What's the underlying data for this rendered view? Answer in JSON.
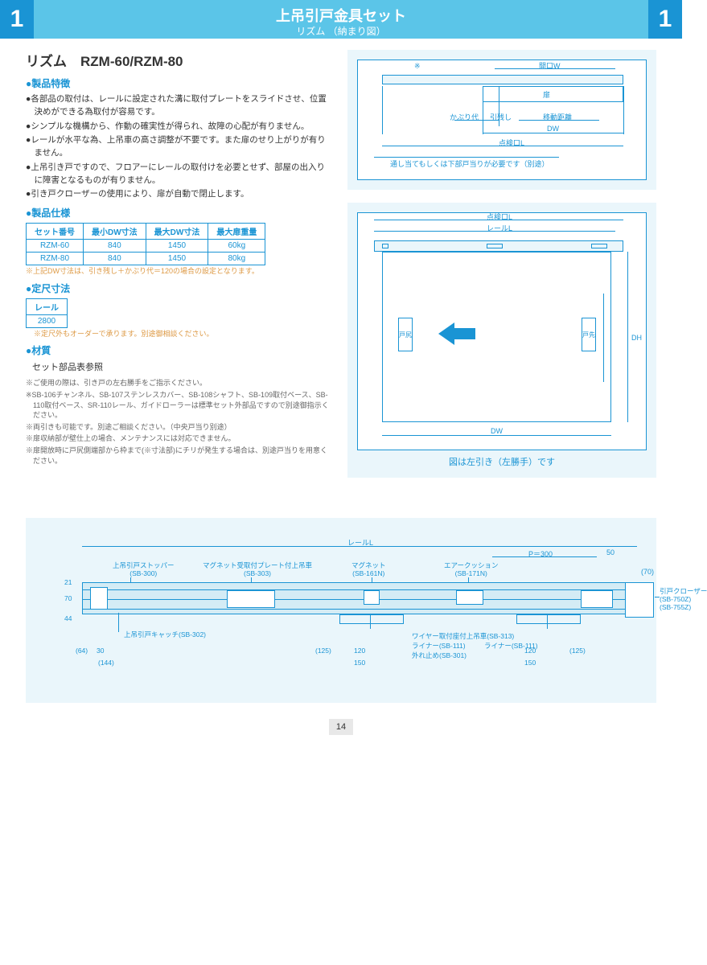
{
  "header": {
    "num_l": "1",
    "num_r": "1",
    "title": "上吊引戸金具セット",
    "subtitle": "リズム （納まり図）"
  },
  "product": {
    "title": "リズム　RZM-60/RZM-80"
  },
  "sections": {
    "features_h": "製品特徴",
    "spec_h": "製品仕様",
    "fixed_h": "定尺寸法",
    "material_h": "材質"
  },
  "features": [
    "各部品の取付は、レールに設定された溝に取付プレートをスライドさせ、位置決めができる為取付が容易です。",
    "シンプルな機構から、作動の確実性が得られ、故障の心配が有りません。",
    "レールが水平な為、上吊車の高さ調整が不要です。また扉のせり上がりが有りません。",
    "上吊引き戸ですので、フロアーにレールの取付けを必要とせず、部屋の出入りに障害となるものが有りません。",
    "引き戸クローザーの使用により、扉が自動で閉止します。"
  ],
  "spec_table": {
    "headers": [
      "セット番号",
      "最小DW寸法",
      "最大DW寸法",
      "最大扉重量"
    ],
    "rows": [
      [
        "RZM-60",
        "840",
        "1450",
        "60kg"
      ],
      [
        "RZM-80",
        "840",
        "1450",
        "80kg"
      ]
    ]
  },
  "spec_note": "※上記DW寸法は、引き残し＋かぶり代＝120の場合の設定となります。",
  "fixed_table": {
    "header": "レール",
    "value": "2800"
  },
  "fixed_note": "※定尺外もオーダーで承ります。別途御相談ください。",
  "material_txt": "セット部品表参照",
  "small_notes": [
    "※ご使用の際は、引き戸の左右勝手をご指示ください。",
    "※SB-106チャンネル、SB-107ステンレスカバー、SB-108シャフト、SB-109取付ベース、SB-110取付ベース、SR-110レール、ガイドローラーは標準セット外部品ですので別途御指示ください。",
    "※両引きも可能です。別途ご相談ください。（中央戸当り別途）",
    "※扉収納部が壁仕上の場合、メンテナンスには対応できません。",
    "※扉開放時に戸尻側端部から枠まで(※寸法部)にチリが発生する場合は、別途戸当りを用意ください。"
  ],
  "diagram1": {
    "labels": {
      "kw": "開口W",
      "door": "扉",
      "kaburi": "かぶり代",
      "hikinokoshi": "引残し",
      "ido": "移動距離",
      "dw": "DW",
      "tenken": "点検口L",
      "bottom_note": "通し当てもしくは下部戸当りが必要です（別途）",
      "asterisk": "※"
    }
  },
  "diagram2": {
    "labels": {
      "tenken": "点検口L",
      "rail": "レールL",
      "tojiri": "戸尻",
      "tosaki": "戸先",
      "dh": "DH",
      "dw": "DW"
    },
    "caption": "図は左引き（左勝手）です"
  },
  "bottom": {
    "rail_l": "レールL",
    "parts": {
      "stopper": "上吊引戸ストッパー\n(SB-300)",
      "magnet_plate": "マグネット受取付プレート付上吊車\n(SB-303)",
      "magnet": "マグネット\n(SB-161N)",
      "air": "エアークッション\n(SB-171N)",
      "catch": "上吊引戸キャッチ(SB-302)",
      "wire": "ワイヤー取付座付上吊車(SB-313)",
      "liner1": "ライナー(SB-111)",
      "liner2": "ライナー(SB-111)",
      "sotodome": "外れ止め(SB-301)",
      "closer": "引戸クローザー\n(SB-750Z)\n(SB-755Z)"
    },
    "dims": {
      "v21": "21",
      "v70": "70",
      "v44": "44",
      "v64": "(64)",
      "v30": "30",
      "v144": "(144)",
      "p300": "P＝300",
      "v50": "50",
      "v70b": "(70)",
      "v125a": "(125)",
      "v120a": "120",
      "v150a": "150",
      "v125b": "(125)",
      "v120b": "120",
      "v150b": "150"
    }
  },
  "page": "14"
}
